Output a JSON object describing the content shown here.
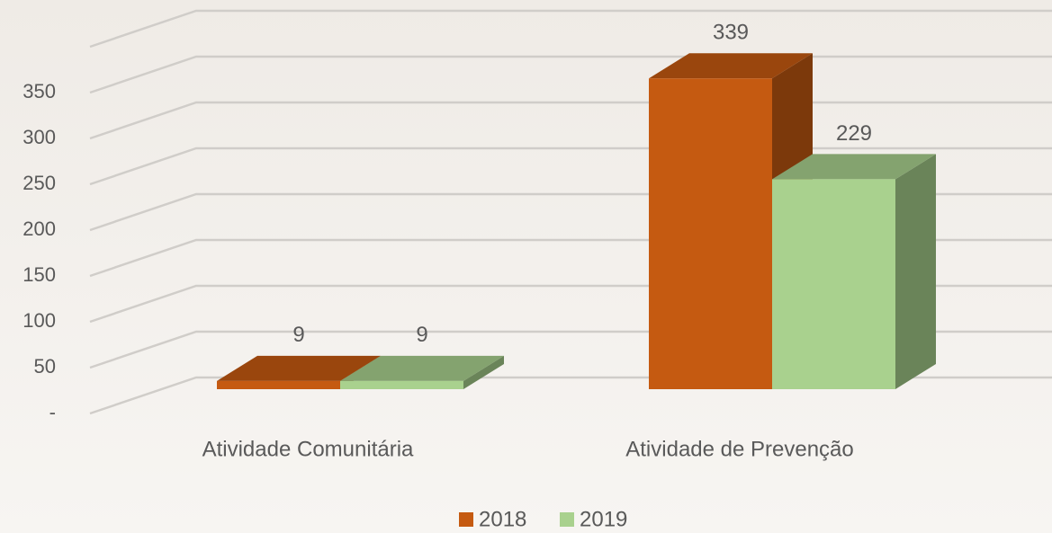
{
  "chart_data": {
    "type": "bar3d",
    "categories": [
      "Atividade Comunitária",
      "Atividade de Prevenção"
    ],
    "series": [
      {
        "name": "2018",
        "color": "#c55a11",
        "values": [
          9,
          339
        ]
      },
      {
        "name": "2019",
        "color": "#a9d18e",
        "values": [
          9,
          229
        ]
      }
    ],
    "ylim": [
      0,
      400
    ],
    "yticks": [
      {
        "value": 0,
        "label": "-"
      },
      50,
      100,
      150,
      200,
      250,
      300,
      350
    ],
    "grid": true,
    "legend": "bottom"
  }
}
